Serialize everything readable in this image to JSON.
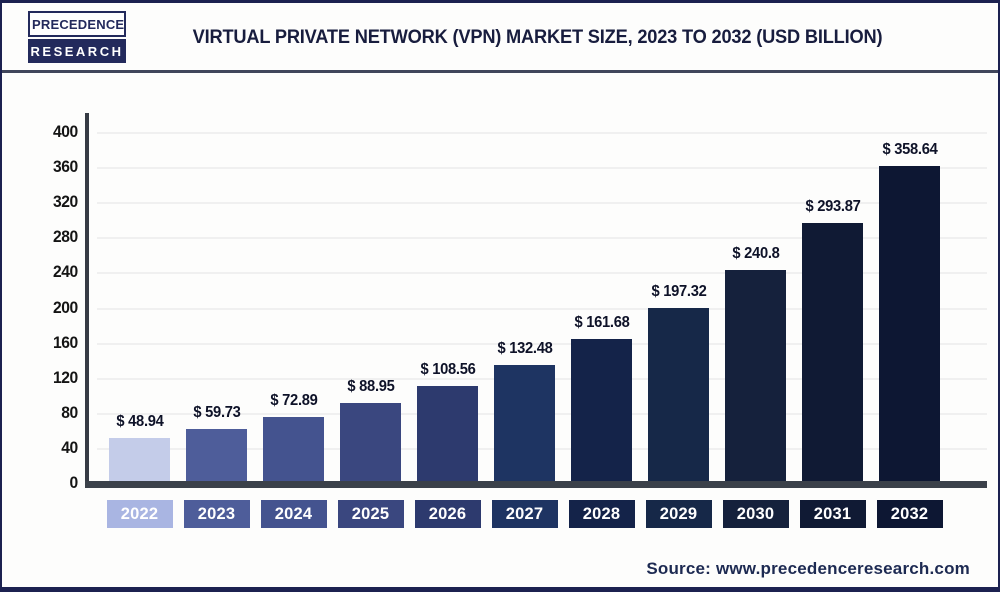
{
  "header": {
    "logo": {
      "line1": "PRECEDENCE",
      "line2": "RESEARCH"
    },
    "title": "VIRTUAL PRIVATE NETWORK (VPN) MARKET SIZE, 2023 TO 2032 (USD BILLION)"
  },
  "footer": {
    "source": "Source: www.precedenceresearch.com"
  },
  "chart_data": {
    "type": "bar",
    "title": "Virtual Private Network (VPN) Market Size, 2023 to 2032 (USD Billion)",
    "categories": [
      "2022",
      "2023",
      "2024",
      "2025",
      "2026",
      "2027",
      "2028",
      "2029",
      "2030",
      "2031",
      "2032"
    ],
    "values": [
      48.94,
      59.73,
      72.89,
      88.95,
      108.56,
      132.48,
      161.68,
      197.32,
      240.8,
      293.87,
      358.64
    ],
    "value_prefix": "$ ",
    "bar_colors": [
      "#c4cce9",
      "#4e5d9a",
      "#44538f",
      "#3a477f",
      "#2d3a6e",
      "#1e3462",
      "#142349",
      "#162848",
      "#15213c",
      "#101a34",
      "#0d1733"
    ],
    "category_box_colors": [
      "#a9b5e2",
      "#4e5d9a",
      "#44538f",
      "#3a477f",
      "#2d3a6e",
      "#1e3462",
      "#142349",
      "#162848",
      "#15213c",
      "#101a34",
      "#0d1733"
    ],
    "xlabel": "",
    "ylabel": "",
    "ylim": [
      0,
      400
    ],
    "ytick_step": 40,
    "yticks": [
      0,
      40,
      80,
      120,
      160,
      200,
      240,
      280,
      320,
      360,
      400
    ],
    "grid": true,
    "legend": "none"
  },
  "colors": {
    "page_border": "#1c2150",
    "header_divider": "#40465b",
    "axis": "#3b414a",
    "gridline": "#f0f0f0",
    "tick_label": "#141414",
    "value_label": "#0e1228",
    "title_text": "#181d3e",
    "source_text": "#1d2a52",
    "logo_navy": "#232a5c"
  }
}
